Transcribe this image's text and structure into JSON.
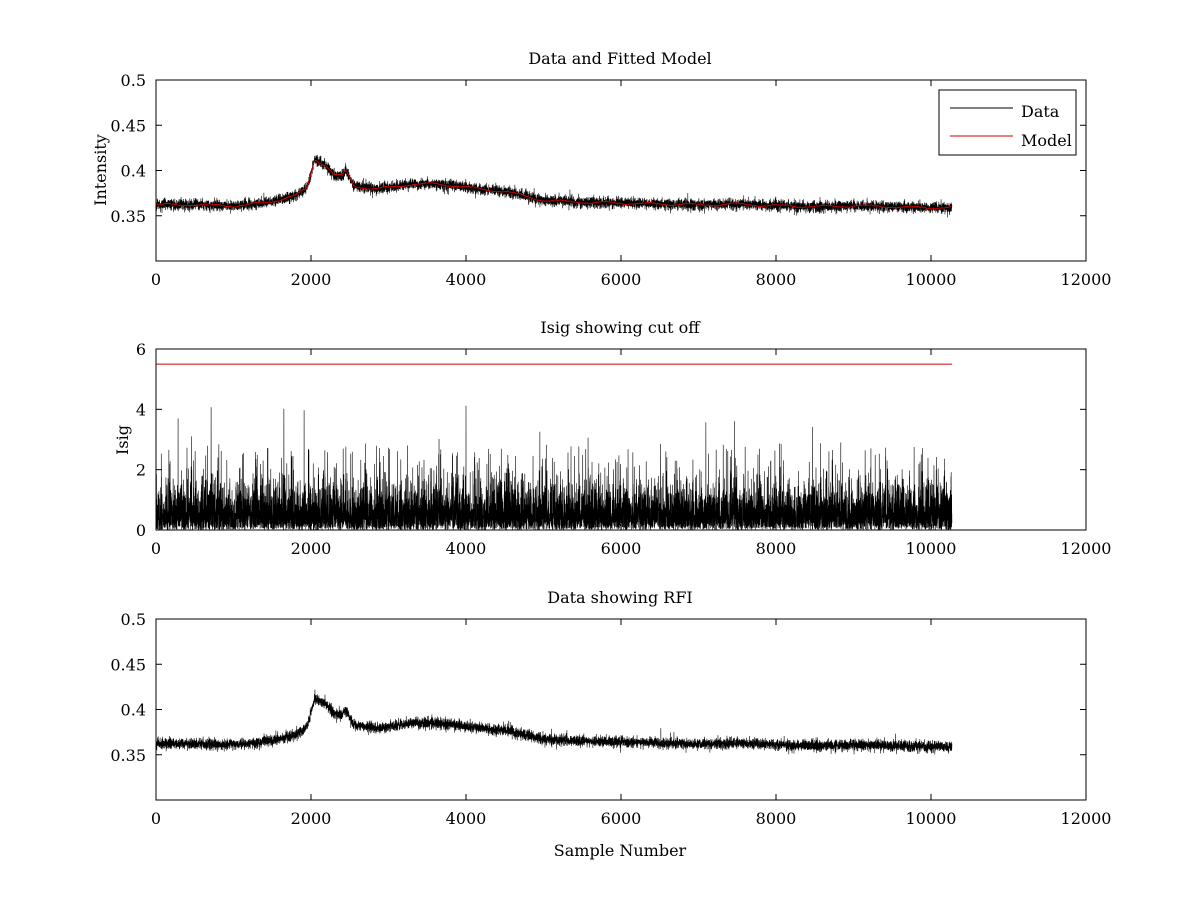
{
  "figure": {
    "background": "#ffffff"
  },
  "chart_data": [
    {
      "type": "line",
      "title": "Data and Fitted Model",
      "xlabel": "",
      "ylabel": "Intensity",
      "xlim": [
        0,
        12000
      ],
      "ylim": [
        0.3,
        0.5
      ],
      "xticks": [
        0,
        2000,
        4000,
        6000,
        8000,
        10000,
        12000
      ],
      "xtick_labels": [
        "0",
        "2000",
        "4000",
        "6000",
        "8000",
        "10000",
        "12000"
      ],
      "yticks": [
        0.35,
        0.4,
        0.45,
        0.5
      ],
      "ytick_labels": [
        "0.35",
        "0.4",
        "0.45",
        "0.5"
      ],
      "grid": false,
      "legend": "top-right",
      "series": [
        {
          "name": "Data",
          "color": "#000000",
          "style": "noisy",
          "x": [
            0,
            500,
            1000,
            1200,
            1500,
            1800,
            1950,
            2050,
            2100,
            2200,
            2300,
            2400,
            2450,
            2550,
            2800,
            3000,
            3300,
            3600,
            3900,
            4200,
            4500,
            4700,
            5000,
            5500,
            6000,
            6500,
            7000,
            7500,
            8000,
            8500,
            9000,
            9500,
            10000,
            10270
          ],
          "y": [
            0.362,
            0.362,
            0.361,
            0.362,
            0.366,
            0.372,
            0.381,
            0.413,
            0.41,
            0.405,
            0.395,
            0.394,
            0.4,
            0.383,
            0.38,
            0.381,
            0.385,
            0.385,
            0.383,
            0.379,
            0.377,
            0.373,
            0.367,
            0.365,
            0.364,
            0.363,
            0.362,
            0.363,
            0.361,
            0.36,
            0.361,
            0.36,
            0.359,
            0.359
          ],
          "noise_amplitude": 0.005,
          "samples": 10270
        },
        {
          "name": "Model",
          "color": "#cc0000",
          "style": "smooth",
          "x": [
            0,
            500,
            1000,
            1200,
            1500,
            1800,
            1950,
            2050,
            2100,
            2200,
            2300,
            2400,
            2450,
            2550,
            2800,
            3000,
            3300,
            3600,
            3900,
            4200,
            4500,
            4700,
            5000,
            5500,
            6000,
            6500,
            7000,
            7500,
            8000,
            8500,
            9000,
            9500,
            10000,
            10270
          ],
          "y": [
            0.362,
            0.362,
            0.361,
            0.362,
            0.366,
            0.372,
            0.381,
            0.413,
            0.41,
            0.405,
            0.395,
            0.394,
            0.4,
            0.383,
            0.38,
            0.381,
            0.385,
            0.385,
            0.383,
            0.379,
            0.377,
            0.373,
            0.367,
            0.365,
            0.364,
            0.363,
            0.362,
            0.363,
            0.361,
            0.36,
            0.361,
            0.36,
            0.359,
            0.359
          ]
        }
      ]
    },
    {
      "type": "line",
      "title": "Isig showing cut off",
      "xlabel": "",
      "ylabel": "Isig",
      "xlim": [
        0,
        12000
      ],
      "ylim": [
        0,
        6
      ],
      "xticks": [
        0,
        2000,
        4000,
        6000,
        8000,
        10000,
        12000
      ],
      "xtick_labels": [
        "0",
        "2000",
        "4000",
        "6000",
        "8000",
        "10000",
        "12000"
      ],
      "yticks": [
        0,
        2,
        4,
        6
      ],
      "ytick_labels": [
        "0",
        "2",
        "4",
        "6"
      ],
      "grid": false,
      "series": [
        {
          "color": "#000000",
          "style": "spiky",
          "x_range": [
            0,
            10270
          ],
          "samples": 10270,
          "typical_max": 2.0,
          "peak_max": 4.3
        },
        {
          "color": "#cc0000",
          "style": "constant",
          "x": [
            0,
            10270
          ],
          "y": [
            5.5,
            5.5
          ]
        }
      ]
    },
    {
      "type": "line",
      "title": "Data showing RFI",
      "xlabel": "Sample Number",
      "ylabel": "",
      "xlim": [
        0,
        12000
      ],
      "ylim": [
        0.3,
        0.5
      ],
      "xticks": [
        0,
        2000,
        4000,
        6000,
        8000,
        10000,
        12000
      ],
      "xtick_labels": [
        "0",
        "2000",
        "4000",
        "6000",
        "8000",
        "10000",
        "12000"
      ],
      "yticks": [
        0.35,
        0.4,
        0.45,
        0.5
      ],
      "ytick_labels": [
        "0.35",
        "0.4",
        "0.45",
        "0.5"
      ],
      "grid": false,
      "series": [
        {
          "color": "#000000",
          "style": "noisy",
          "x": [
            0,
            500,
            1000,
            1200,
            1500,
            1800,
            1950,
            2050,
            2100,
            2200,
            2300,
            2400,
            2450,
            2550,
            2800,
            3000,
            3300,
            3600,
            3900,
            4200,
            4500,
            4700,
            5000,
            5500,
            6000,
            6500,
            7000,
            7500,
            8000,
            8500,
            9000,
            9500,
            10000,
            10270
          ],
          "y": [
            0.362,
            0.362,
            0.361,
            0.362,
            0.366,
            0.372,
            0.381,
            0.413,
            0.41,
            0.405,
            0.395,
            0.394,
            0.4,
            0.383,
            0.38,
            0.381,
            0.385,
            0.385,
            0.383,
            0.379,
            0.377,
            0.373,
            0.367,
            0.365,
            0.364,
            0.363,
            0.362,
            0.363,
            0.361,
            0.36,
            0.361,
            0.36,
            0.359,
            0.359
          ],
          "noise_amplitude": 0.005,
          "samples": 10270
        }
      ]
    }
  ]
}
